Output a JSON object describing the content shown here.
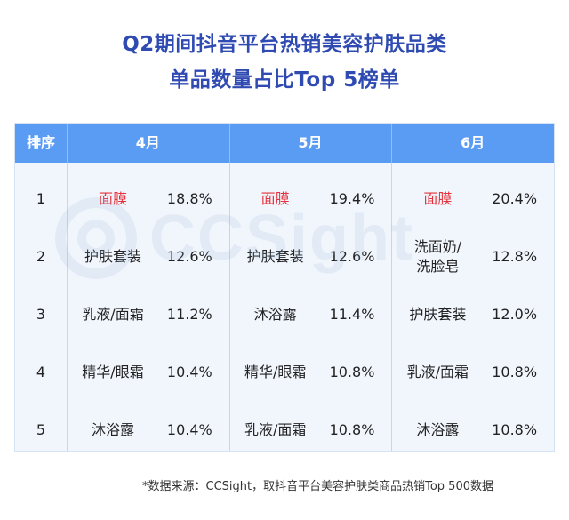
{
  "title_line1": "Q2期间抖音平台热销美容护肤品类",
  "title_line2": "单品数量占比Top 5榜单",
  "table": {
    "rank_header": "排序",
    "months": [
      "4月",
      "5月",
      "6月"
    ],
    "rows": [
      {
        "rank": "1",
        "cols": [
          {
            "name": "面膜",
            "pct": "18.8%",
            "hot": true
          },
          {
            "name": "面膜",
            "pct": "19.4%",
            "hot": true
          },
          {
            "name": "面膜",
            "pct": "20.4%",
            "hot": true
          }
        ]
      },
      {
        "rank": "2",
        "cols": [
          {
            "name": "护肤套装",
            "pct": "12.6%"
          },
          {
            "name": "护肤套装",
            "pct": "12.6%"
          },
          {
            "name": "洗面奶/\n洗脸皂",
            "pct": "12.8%"
          }
        ]
      },
      {
        "rank": "3",
        "cols": [
          {
            "name": "乳液/面霜",
            "pct": "11.2%"
          },
          {
            "name": "沐浴露",
            "pct": "11.4%"
          },
          {
            "name": "护肤套装",
            "pct": "12.0%"
          }
        ]
      },
      {
        "rank": "4",
        "cols": [
          {
            "name": "精华/眼霜",
            "pct": "10.4%"
          },
          {
            "name": "精华/眼霜",
            "pct": "10.8%"
          },
          {
            "name": "乳液/面霜",
            "pct": "10.8%"
          }
        ]
      },
      {
        "rank": "5",
        "cols": [
          {
            "name": "沐浴露",
            "pct": "10.4%"
          },
          {
            "name": "乳液/面霜",
            "pct": "10.8%"
          },
          {
            "name": "沐浴露",
            "pct": "10.8%"
          }
        ]
      }
    ]
  },
  "watermark_text": "CCSight",
  "footnote": "*数据来源：CCSight，取抖音平台美容护肤类商品热销Top 500数据",
  "colors": {
    "title": "#2f4bb2",
    "header_bg": "#5a9cf3",
    "table_bg": "#f1f6fd",
    "highlight": "#e6313a"
  }
}
